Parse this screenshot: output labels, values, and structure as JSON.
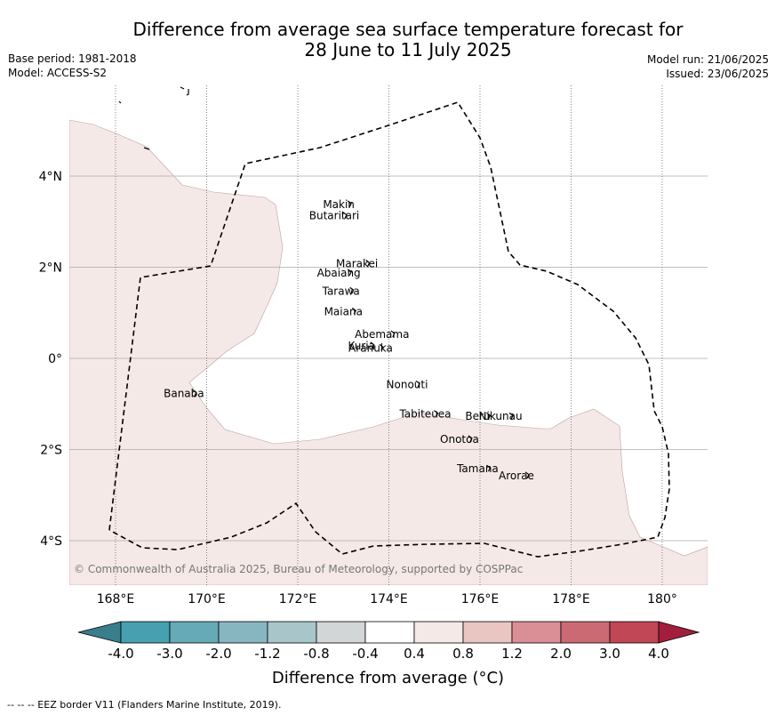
{
  "title": {
    "line1": "Difference from average sea surface temperature forecast for",
    "line2": "28 June to 11 July 2025"
  },
  "meta": {
    "base_period": "Base period: 1981-2018",
    "model": "Model: ACCESS-S2",
    "model_run": "Model run: 21/06/2025",
    "issued": "Issued: 23/06/2025"
  },
  "map": {
    "lon_range": [
      167,
      181
    ],
    "lat_range": [
      -5,
      6
    ],
    "lon_ticks": [
      {
        "value": 168,
        "label": "168°E"
      },
      {
        "value": 170,
        "label": "170°E"
      },
      {
        "value": 172,
        "label": "172°E"
      },
      {
        "value": 174,
        "label": "174°E"
      },
      {
        "value": 176,
        "label": "176°E"
      },
      {
        "value": 178,
        "label": "178°E"
      },
      {
        "value": 180,
        "label": "180°"
      }
    ],
    "lat_ticks": [
      {
        "value": 4,
        "label": "4°N"
      },
      {
        "value": 2,
        "label": "2°N"
      },
      {
        "value": 0,
        "label": "0°"
      },
      {
        "value": -2,
        "label": "2°S"
      },
      {
        "value": -4,
        "label": "4°S"
      }
    ],
    "islands": [
      {
        "name": "Makin",
        "lon": 172.9,
        "lat": 3.3
      },
      {
        "name": "Butaritari",
        "lon": 172.8,
        "lat": 3.05
      },
      {
        "name": "Marakei",
        "lon": 173.3,
        "lat": 2.0
      },
      {
        "name": "Abaiang",
        "lon": 172.9,
        "lat": 1.8
      },
      {
        "name": "Tarawa",
        "lon": 172.95,
        "lat": 1.4
      },
      {
        "name": "Maiana",
        "lon": 173.0,
        "lat": 0.95
      },
      {
        "name": "Abemama",
        "lon": 173.85,
        "lat": 0.45
      },
      {
        "name": "Kuria",
        "lon": 173.4,
        "lat": 0.2
      },
      {
        "name": "Aranuka",
        "lon": 173.6,
        "lat": 0.15
      },
      {
        "name": "Nonouti",
        "lon": 174.4,
        "lat": -0.65
      },
      {
        "name": "Banaba",
        "lon": 169.5,
        "lat": -0.85
      },
      {
        "name": "Tabiteuea",
        "lon": 174.8,
        "lat": -1.3
      },
      {
        "name": "Beru",
        "lon": 175.95,
        "lat": -1.35
      },
      {
        "name": "Nikunau",
        "lon": 176.45,
        "lat": -1.35
      },
      {
        "name": "Onotoa",
        "lon": 175.55,
        "lat": -1.85
      },
      {
        "name": "Tamana",
        "lon": 175.95,
        "lat": -2.5
      },
      {
        "name": "Arorae",
        "lon": 176.8,
        "lat": -2.65
      }
    ],
    "copyright": "© Commonwealth of Australia 2025, Bureau of Meteorology, supported by COSPPac"
  },
  "colorbar": {
    "title": "Difference from average (°C)",
    "colors": [
      "#3a7e8c",
      "#46a0b0",
      "#66aab8",
      "#88b6c0",
      "#a8c6ca",
      "#d2d6d6",
      "#ffffff",
      "#f5e9e7",
      "#e9c6c2",
      "#d98f95",
      "#cc6a74",
      "#c14656",
      "#a31e3e"
    ],
    "tick_labels": [
      "-4.0",
      "-3.0",
      "-2.0",
      "-1.2",
      "-0.8",
      "-0.4",
      "0.4",
      "0.8",
      "1.2",
      "2.0",
      "3.0",
      "4.0"
    ]
  },
  "legend_text": "--  --  -- EEZ border V11 (Flanders Marine Institute, 2019)."
}
